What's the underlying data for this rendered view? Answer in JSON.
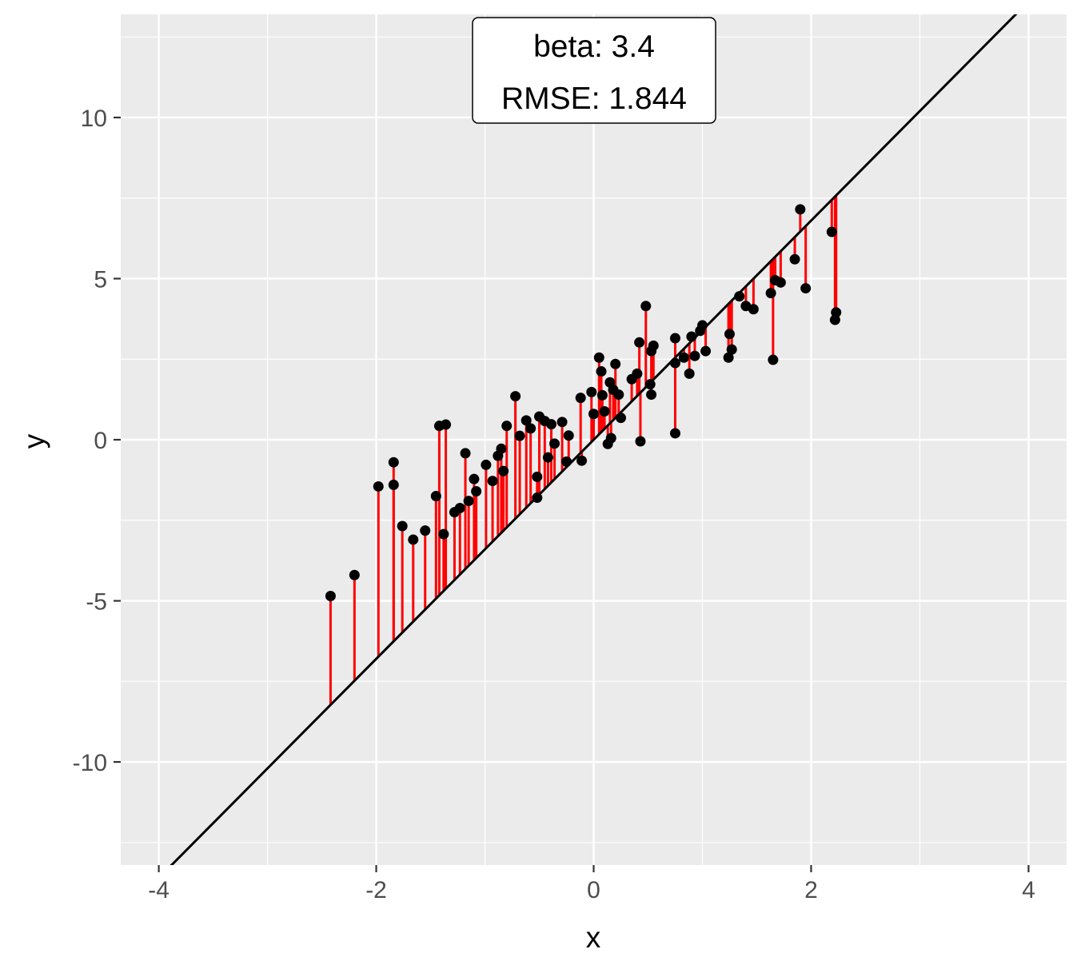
{
  "chart_data": {
    "type": "scatter",
    "xlabel": "x",
    "ylabel": "y",
    "xlim": [
      -4.35,
      4.35
    ],
    "ylim": [
      -13.2,
      13.2
    ],
    "x_ticks": [
      -4,
      -2,
      0,
      2,
      4
    ],
    "x_tick_labels": [
      "-4",
      "-2",
      "0",
      "2",
      "4"
    ],
    "y_ticks": [
      -10,
      -5,
      0,
      5,
      10
    ],
    "y_tick_labels": [
      "-10",
      "-5",
      "0",
      "5",
      "10"
    ],
    "grid": true,
    "line": {
      "intercept": 0,
      "slope": 3.4,
      "color": "#000000"
    },
    "residual_color": "#ff0000",
    "point_color": "#000000",
    "annotation": {
      "line1": "beta: 3.4",
      "line2": "RMSE: 1.844"
    },
    "points": [
      [
        -2.42,
        -4.85
      ],
      [
        -2.2,
        -4.2
      ],
      [
        -1.98,
        -1.45
      ],
      [
        -1.84,
        -0.7
      ],
      [
        -1.84,
        -1.4
      ],
      [
        -1.76,
        -2.68
      ],
      [
        -1.66,
        -3.1
      ],
      [
        -1.55,
        -2.82
      ],
      [
        -1.45,
        -1.75
      ],
      [
        -1.42,
        0.43
      ],
      [
        -1.36,
        0.47
      ],
      [
        -1.38,
        -2.93
      ],
      [
        -1.28,
        -2.25
      ],
      [
        -1.23,
        -2.12
      ],
      [
        -1.18,
        -0.42
      ],
      [
        -1.15,
        -1.9
      ],
      [
        -1.1,
        -1.22
      ],
      [
        -1.08,
        -1.6
      ],
      [
        -0.99,
        -0.78
      ],
      [
        -0.93,
        -1.28
      ],
      [
        -0.88,
        -0.5
      ],
      [
        -0.85,
        -0.28
      ],
      [
        -0.83,
        -0.97
      ],
      [
        -0.8,
        0.43
      ],
      [
        -0.72,
        1.35
      ],
      [
        -0.68,
        0.12
      ],
      [
        -0.62,
        0.6
      ],
      [
        -0.58,
        0.35
      ],
      [
        -0.52,
        -1.15
      ],
      [
        -0.52,
        -1.8
      ],
      [
        -0.5,
        0.72
      ],
      [
        -0.45,
        0.58
      ],
      [
        -0.42,
        -0.55
      ],
      [
        -0.39,
        0.48
      ],
      [
        -0.36,
        -0.12
      ],
      [
        -0.29,
        0.55
      ],
      [
        -0.25,
        -0.68
      ],
      [
        -0.23,
        0.13
      ],
      [
        -0.11,
        -0.65
      ],
      [
        -0.12,
        1.3
      ],
      [
        -0.02,
        1.48
      ],
      [
        0.0,
        0.8
      ],
      [
        0.05,
        2.55
      ],
      [
        0.07,
        2.12
      ],
      [
        0.08,
        1.38
      ],
      [
        0.1,
        0.88
      ],
      [
        0.13,
        -0.13
      ],
      [
        0.15,
        1.78
      ],
      [
        0.16,
        0.05
      ],
      [
        0.18,
        1.55
      ],
      [
        0.2,
        2.35
      ],
      [
        0.23,
        1.4
      ],
      [
        0.25,
        0.68
      ],
      [
        0.35,
        1.88
      ],
      [
        0.4,
        2.05
      ],
      [
        0.42,
        3.02
      ],
      [
        0.43,
        -0.05
      ],
      [
        0.48,
        4.15
      ],
      [
        0.52,
        1.72
      ],
      [
        0.53,
        1.4
      ],
      [
        0.55,
        2.92
      ],
      [
        0.53,
        2.75
      ],
      [
        0.75,
        0.2
      ],
      [
        0.75,
        2.38
      ],
      [
        0.75,
        3.15
      ],
      [
        0.83,
        2.55
      ],
      [
        0.88,
        2.05
      ],
      [
        0.9,
        3.2
      ],
      [
        0.93,
        2.6
      ],
      [
        0.98,
        3.38
      ],
      [
        1.0,
        3.55
      ],
      [
        1.03,
        2.75
      ],
      [
        1.24,
        2.55
      ],
      [
        1.25,
        3.28
      ],
      [
        1.27,
        2.8
      ],
      [
        1.34,
        4.45
      ],
      [
        1.4,
        4.15
      ],
      [
        1.47,
        4.05
      ],
      [
        1.63,
        4.55
      ],
      [
        1.65,
        2.48
      ],
      [
        1.67,
        4.95
      ],
      [
        1.72,
        4.88
      ],
      [
        1.85,
        5.6
      ],
      [
        1.9,
        7.15
      ],
      [
        1.95,
        4.7
      ],
      [
        2.19,
        6.45
      ],
      [
        2.22,
        3.72
      ],
      [
        2.23,
        3.95
      ]
    ]
  }
}
